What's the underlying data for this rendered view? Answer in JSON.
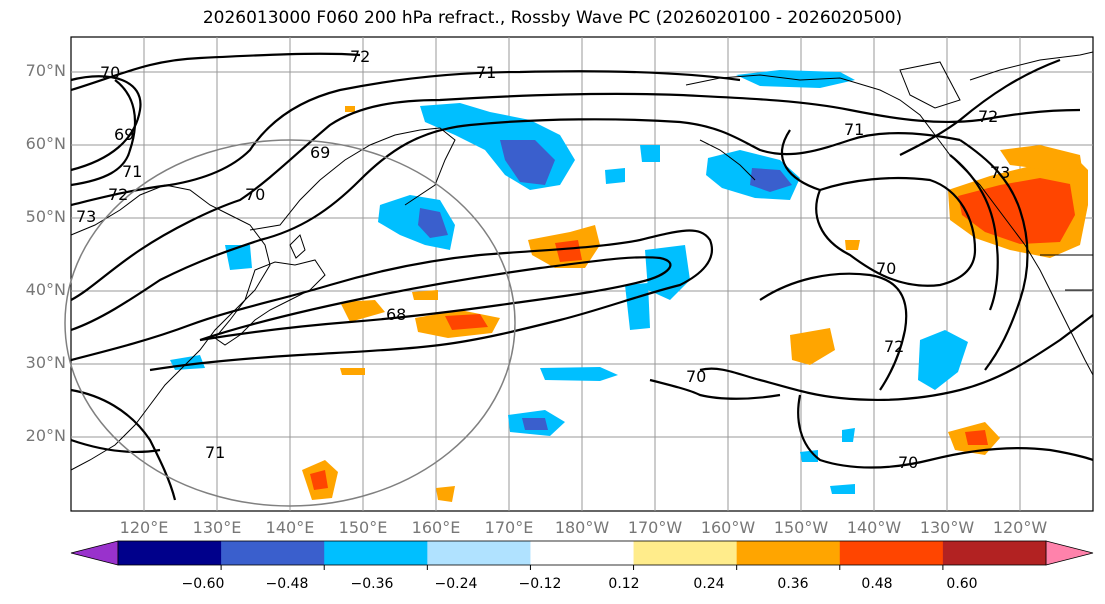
{
  "title": "2026013000 F060 200 hPa refract., Rossby Wave PC (2026020100 - 2026020500)",
  "lat_labels": [
    "70°N",
    "60°N",
    "50°N",
    "40°N",
    "30°N",
    "20°N"
  ],
  "lon_labels": [
    "120°E",
    "130°E",
    "140°E",
    "150°E",
    "160°E",
    "170°E",
    "180°W",
    "170°W",
    "160°W",
    "150°W",
    "140°W",
    "130°W",
    "120°W"
  ],
  "contour_labels": [
    "70",
    "72",
    "71",
    "69",
    "71",
    "72",
    "73",
    "70",
    "69",
    "68",
    "71",
    "72",
    "71",
    "73",
    "70",
    "72",
    "70",
    "70"
  ],
  "colorbar": {
    "ticks": [
      "−0.60",
      "−0.48",
      "−0.36",
      "−0.24",
      "−0.12",
      "0.12",
      "0.24",
      "0.36",
      "0.48",
      "0.60"
    ],
    "colors": [
      "#9932cc",
      "#00008b",
      "#3a5fcd",
      "#00bfff",
      "#b0e2ff",
      "#ffffff",
      "#ffec8b",
      "#ffa500",
      "#ff4500",
      "#b22222",
      "#ff82ab"
    ]
  }
}
